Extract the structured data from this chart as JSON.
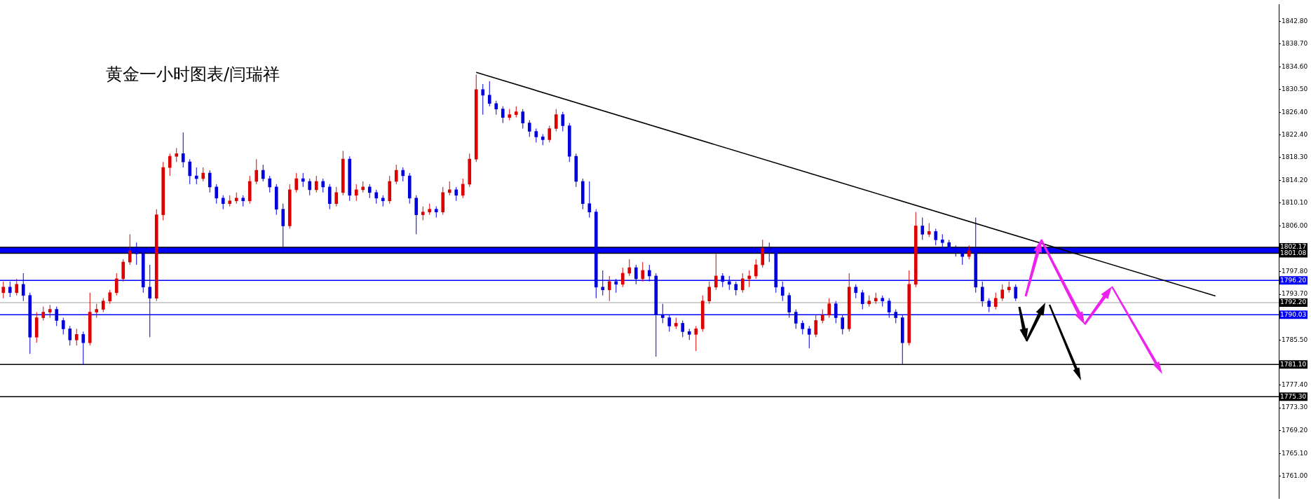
{
  "chart_data": {
    "type": "candlestick",
    "title": "黄金一小时图表/闫瑞祥",
    "categories": [
      null,
      null,
      null,
      null,
      null,
      null,
      null,
      null,
      null,
      null,
      null,
      null,
      null,
      null,
      null,
      null,
      null,
      null,
      null,
      null,
      null,
      null,
      null,
      null,
      null,
      null,
      null,
      null,
      null,
      null,
      null,
      null,
      null,
      null,
      null,
      null,
      null,
      null,
      null,
      null,
      null,
      null,
      null,
      null,
      null,
      null,
      null,
      null,
      null,
      null,
      null,
      null,
      null,
      null,
      null,
      null,
      null,
      null,
      null,
      null,
      null,
      null,
      null,
      null,
      null,
      null,
      null,
      null,
      null,
      null,
      null,
      null,
      null,
      null,
      null,
      null,
      null,
      null,
      null,
      null,
      null,
      null,
      null,
      null,
      null,
      null,
      null,
      null,
      null,
      null,
      null,
      null,
      null,
      null,
      null,
      null,
      null,
      null,
      null,
      null,
      null,
      null,
      null,
      null,
      null,
      null,
      null,
      null,
      null,
      null,
      null,
      null,
      null,
      null,
      null,
      null,
      null,
      null,
      null,
      null,
      null,
      null,
      null,
      null,
      null,
      null,
      null,
      null,
      null,
      null,
      null,
      null,
      null,
      null,
      null,
      null,
      null,
      null,
      null,
      null,
      null,
      null,
      null,
      null,
      null,
      null,
      null,
      null,
      null,
      null,
      null,
      null,
      null,
      null,
      null,
      null,
      null,
      null,
      null,
      null,
      null,
      null,
      null,
      null,
      null,
      null,
      null,
      null,
      null,
      null,
      null,
      null,
      null,
      null,
      null,
      null,
      null,
      null,
      null,
      null,
      null,
      null,
      null,
      null,
      null,
      null,
      null,
      null,
      null,
      null,
      null,
      null
    ],
    "ohlc": [
      [
        1794.0,
        1796.0,
        1793.0,
        1795.0
      ],
      [
        1795.0,
        1796.0,
        1793.2,
        1794.0
      ],
      [
        1794.0,
        1796.5,
        1793.5,
        1795.5
      ],
      [
        1795.5,
        1797.5,
        1792.5,
        1793.5
      ],
      [
        1793.5,
        1794.0,
        1783.0,
        1786.0
      ],
      [
        1786.0,
        1790.5,
        1785.0,
        1789.5
      ],
      [
        1789.5,
        1791.5,
        1789.0,
        1790.5
      ],
      [
        1790.5,
        1791.8,
        1789.5,
        1791.0
      ],
      [
        1791.0,
        1791.5,
        1788.0,
        1789.0
      ],
      [
        1789.0,
        1789.5,
        1786.5,
        1787.5
      ],
      [
        1787.5,
        1788.0,
        1784.5,
        1785.5
      ],
      [
        1785.5,
        1787.5,
        1784.5,
        1786.5
      ],
      [
        1786.5,
        1787.0,
        1781.0,
        1785.0
      ],
      [
        1785.0,
        1794.0,
        1784.5,
        1790.5
      ],
      [
        1790.5,
        1792.0,
        1789.5,
        1791.0
      ],
      [
        1791.0,
        1793.0,
        1790.5,
        1792.5
      ],
      [
        1792.5,
        1794.5,
        1792.0,
        1794.0
      ],
      [
        1794.0,
        1797.5,
        1793.5,
        1796.5
      ],
      [
        1796.5,
        1800.0,
        1796.0,
        1799.5
      ],
      [
        1799.5,
        1804.5,
        1799.0,
        1801.5
      ],
      [
        1801.5,
        1803.0,
        1799.0,
        1801.0
      ],
      [
        1801.0,
        1801.5,
        1794.0,
        1795.0
      ],
      [
        1795.0,
        1799.0,
        1786.0,
        1793.0
      ],
      [
        1793.0,
        1809.0,
        1792.5,
        1808.0
      ],
      [
        1808.0,
        1817.5,
        1807.0,
        1816.5
      ],
      [
        1816.5,
        1819.0,
        1815.0,
        1818.5
      ],
      [
        1818.5,
        1820.0,
        1817.5,
        1819.0
      ],
      [
        1819.0,
        1822.8,
        1816.5,
        1817.5
      ],
      [
        1817.5,
        1818.0,
        1813.5,
        1815.0
      ],
      [
        1815.0,
        1816.5,
        1813.5,
        1814.5
      ],
      [
        1814.5,
        1816.5,
        1814.0,
        1815.5
      ],
      [
        1815.5,
        1816.0,
        1812.0,
        1813.0
      ],
      [
        1813.0,
        1813.5,
        1810.0,
        1811.0
      ],
      [
        1811.0,
        1811.5,
        1809.0,
        1810.0
      ],
      [
        1810.0,
        1811.5,
        1809.5,
        1810.5
      ],
      [
        1810.5,
        1812.0,
        1810.0,
        1811.0
      ],
      [
        1811.0,
        1811.5,
        1809.5,
        1810.5
      ],
      [
        1810.5,
        1815.0,
        1810.0,
        1814.0
      ],
      [
        1814.0,
        1818.0,
        1813.5,
        1816.0
      ],
      [
        1816.0,
        1817.0,
        1814.0,
        1814.5
      ],
      [
        1814.5,
        1815.0,
        1812.0,
        1813.0
      ],
      [
        1813.0,
        1813.5,
        1808.0,
        1809.0
      ],
      [
        1809.0,
        1810.0,
        1801.5,
        1806.0
      ],
      [
        1806.0,
        1813.5,
        1805.5,
        1812.5
      ],
      [
        1812.5,
        1815.5,
        1812.0,
        1814.5
      ],
      [
        1814.5,
        1815.5,
        1813.0,
        1814.0
      ],
      [
        1814.0,
        1814.5,
        1811.5,
        1812.5
      ],
      [
        1812.5,
        1815.0,
        1812.0,
        1814.0
      ],
      [
        1814.0,
        1814.5,
        1812.0,
        1813.0
      ],
      [
        1813.0,
        1813.5,
        1809.0,
        1810.0
      ],
      [
        1810.0,
        1813.0,
        1809.5,
        1812.0
      ],
      [
        1812.0,
        1819.5,
        1811.5,
        1818.0
      ],
      [
        1818.0,
        1818.5,
        1810.5,
        1811.5
      ],
      [
        1811.5,
        1813.5,
        1810.5,
        1812.5
      ],
      [
        1812.5,
        1814.0,
        1812.0,
        1813.0
      ],
      [
        1813.0,
        1813.5,
        1811.0,
        1812.0
      ],
      [
        1812.0,
        1812.5,
        1810.0,
        1811.0
      ],
      [
        1811.0,
        1811.5,
        1809.5,
        1810.5
      ],
      [
        1810.5,
        1815.0,
        1810.0,
        1814.0
      ],
      [
        1814.0,
        1817.0,
        1813.5,
        1816.0
      ],
      [
        1816.0,
        1816.5,
        1814.0,
        1815.0
      ],
      [
        1815.0,
        1815.5,
        1810.0,
        1811.0
      ],
      [
        1811.0,
        1811.5,
        1804.5,
        1808.0
      ],
      [
        1808.0,
        1809.5,
        1807.0,
        1808.5
      ],
      [
        1808.5,
        1810.0,
        1808.0,
        1809.0
      ],
      [
        1809.0,
        1809.5,
        1807.5,
        1808.5
      ],
      [
        1808.5,
        1813.0,
        1808.0,
        1812.0
      ],
      [
        1812.0,
        1814.0,
        1811.5,
        1812.5
      ],
      [
        1812.5,
        1813.0,
        1810.5,
        1811.5
      ],
      [
        1811.5,
        1814.5,
        1811.0,
        1813.5
      ],
      [
        1813.5,
        1819.0,
        1813.0,
        1818.0
      ],
      [
        1818.0,
        1833.2,
        1817.5,
        1830.5
      ],
      [
        1830.5,
        1831.5,
        1826.0,
        1829.5
      ],
      [
        1829.5,
        1832.0,
        1827.5,
        1828.0
      ],
      [
        1828.0,
        1828.5,
        1826.0,
        1827.0
      ],
      [
        1827.0,
        1827.5,
        1824.5,
        1825.5
      ],
      [
        1825.5,
        1827.0,
        1825.0,
        1826.0
      ],
      [
        1826.0,
        1827.5,
        1825.5,
        1826.5
      ],
      [
        1826.5,
        1827.0,
        1823.5,
        1824.5
      ],
      [
        1824.5,
        1825.0,
        1822.0,
        1823.0
      ],
      [
        1823.0,
        1823.5,
        1821.0,
        1822.0
      ],
      [
        1822.0,
        1822.5,
        1820.5,
        1821.5
      ],
      [
        1821.5,
        1824.0,
        1821.0,
        1823.5
      ],
      [
        1823.5,
        1827.0,
        1823.0,
        1826.0
      ],
      [
        1826.0,
        1826.5,
        1823.0,
        1824.0
      ],
      [
        1824.0,
        1824.5,
        1817.5,
        1818.5
      ],
      [
        1818.5,
        1819.0,
        1813.0,
        1814.0
      ],
      [
        1814.0,
        1814.5,
        1809.0,
        1810.0
      ],
      [
        1810.0,
        1814.0,
        1807.5,
        1808.5
      ],
      [
        1808.5,
        1809.0,
        1793.0,
        1795.0
      ],
      [
        1795.0,
        1798.0,
        1793.5,
        1794.5
      ],
      [
        1794.5,
        1797.0,
        1792.5,
        1796.0
      ],
      [
        1796.0,
        1796.5,
        1794.0,
        1795.5
      ],
      [
        1795.5,
        1798.5,
        1795.0,
        1797.5
      ],
      [
        1797.5,
        1800.0,
        1797.0,
        1798.5
      ],
      [
        1798.5,
        1799.0,
        1795.5,
        1796.5
      ],
      [
        1796.5,
        1799.5,
        1796.0,
        1798.0
      ],
      [
        1798.0,
        1799.0,
        1796.0,
        1797.0
      ],
      [
        1797.0,
        1797.5,
        1782.5,
        1790.0
      ],
      [
        1790.0,
        1792.0,
        1788.5,
        1789.5
      ],
      [
        1789.5,
        1790.0,
        1787.0,
        1788.0
      ],
      [
        1788.0,
        1789.5,
        1787.5,
        1788.5
      ],
      [
        1788.5,
        1789.0,
        1786.0,
        1787.0
      ],
      [
        1787.0,
        1787.5,
        1785.5,
        1786.5
      ],
      [
        1786.5,
        1788.0,
        1783.5,
        1787.5
      ],
      [
        1787.5,
        1793.5,
        1787.0,
        1792.5
      ],
      [
        1792.5,
        1796.0,
        1792.0,
        1795.0
      ],
      [
        1795.0,
        1801.0,
        1794.5,
        1797.0
      ],
      [
        1797.0,
        1797.5,
        1795.0,
        1796.0
      ],
      [
        1796.0,
        1797.0,
        1794.5,
        1795.5
      ],
      [
        1795.5,
        1796.0,
        1793.5,
        1794.5
      ],
      [
        1794.5,
        1797.5,
        1794.0,
        1796.5
      ],
      [
        1796.5,
        1798.0,
        1795.0,
        1797.0
      ],
      [
        1797.0,
        1800.0,
        1796.5,
        1799.0
      ],
      [
        1799.0,
        1803.5,
        1798.5,
        1802.0
      ],
      [
        1802.0,
        1803.0,
        1799.5,
        1801.5
      ],
      [
        1801.5,
        1802.0,
        1794.0,
        1795.0
      ],
      [
        1795.0,
        1796.0,
        1792.5,
        1793.5
      ],
      [
        1793.5,
        1794.0,
        1789.5,
        1790.5
      ],
      [
        1790.5,
        1791.0,
        1787.5,
        1788.5
      ],
      [
        1788.5,
        1789.0,
        1786.5,
        1787.5
      ],
      [
        1787.5,
        1788.0,
        1784.0,
        1786.5
      ],
      [
        1786.5,
        1790.0,
        1786.0,
        1789.0
      ],
      [
        1789.0,
        1791.0,
        1788.5,
        1790.0
      ],
      [
        1790.0,
        1793.0,
        1789.5,
        1792.0
      ],
      [
        1792.0,
        1792.5,
        1788.5,
        1789.5
      ],
      [
        1789.5,
        1790.0,
        1786.5,
        1787.5
      ],
      [
        1787.5,
        1797.5,
        1787.0,
        1795.0
      ],
      [
        1795.0,
        1795.5,
        1793.0,
        1794.0
      ],
      [
        1794.0,
        1794.5,
        1791.0,
        1792.0
      ],
      [
        1792.0,
        1793.5,
        1791.5,
        1792.5
      ],
      [
        1792.5,
        1794.0,
        1792.0,
        1793.0
      ],
      [
        1793.0,
        1793.5,
        1791.5,
        1792.5
      ],
      [
        1792.5,
        1793.0,
        1789.5,
        1790.5
      ],
      [
        1790.5,
        1791.0,
        1788.5,
        1789.5
      ],
      [
        1789.5,
        1790.0,
        1781.0,
        1785.0
      ],
      [
        1785.0,
        1798.0,
        1784.5,
        1795.5
      ],
      [
        1795.5,
        1808.5,
        1795.0,
        1806.0
      ],
      [
        1806.0,
        1807.5,
        1803.5,
        1804.5
      ],
      [
        1804.5,
        1806.5,
        1804.0,
        1805.0
      ],
      [
        1805.0,
        1805.5,
        1802.5,
        1803.5
      ],
      [
        1803.5,
        1804.5,
        1802.0,
        1803.0
      ],
      [
        1803.0,
        1803.5,
        1801.0,
        1802.0
      ],
      [
        1802.0,
        1802.5,
        1800.5,
        1801.5
      ],
      [
        1801.5,
        1802.0,
        1799.0,
        1800.5
      ],
      [
        1800.5,
        1802.5,
        1800.0,
        1801.5
      ],
      [
        1801.5,
        1807.5,
        1794.0,
        1795.0
      ],
      [
        1795.0,
        1796.0,
        1791.5,
        1792.5
      ],
      [
        1792.5,
        1793.0,
        1790.5,
        1791.5
      ],
      [
        1791.5,
        1794.0,
        1791.0,
        1793.0
      ],
      [
        1793.0,
        1795.5,
        1792.5,
        1794.5
      ],
      [
        1794.5,
        1796.0,
        1794.0,
        1795.0
      ],
      [
        1795.0,
        1795.5,
        1792.5,
        1793.0
      ],
      null,
      null,
      null,
      null,
      null,
      null,
      null,
      null,
      null,
      null,
      null,
      null,
      null,
      null,
      null,
      null,
      null,
      null,
      null,
      null,
      null,
      null,
      null,
      null,
      null,
      null,
      null,
      null,
      null,
      null,
      null,
      null,
      null,
      null,
      null,
      null,
      null,
      null,
      null
    ],
    "colors": [
      "#dd0000",
      "#0000dd",
      "#dd0000",
      "#0000dd",
      "#0000dd",
      "#dd0000",
      "#dd0000",
      "#dd0000",
      "#0000dd",
      "#0000dd",
      "#0000dd",
      "#dd0000",
      "#0000dd",
      "#dd0000",
      "#dd0000",
      "#dd0000",
      "#dd0000",
      "#dd0000",
      "#dd0000",
      "#dd0000",
      "#0000dd",
      "#0000dd",
      "#0000dd",
      "#dd0000",
      "#dd0000",
      "#dd0000",
      "#dd0000",
      "#0000dd",
      "#0000dd",
      "#0000dd",
      "#dd0000",
      "#0000dd",
      "#0000dd",
      "#0000dd",
      "#dd0000",
      "#dd0000",
      "#0000dd",
      "#dd0000",
      "#dd0000",
      "#0000dd",
      "#0000dd",
      "#0000dd",
      "#0000dd",
      "#dd0000",
      "#dd0000",
      "#0000dd",
      "#0000dd",
      "#dd0000",
      "#0000dd",
      "#0000dd",
      "#dd0000",
      "#dd0000",
      "#0000dd",
      "#dd0000",
      "#dd0000",
      "#0000dd",
      "#0000dd",
      "#0000dd",
      "#dd0000",
      "#dd0000",
      "#0000dd",
      "#0000dd",
      "#0000dd",
      "#dd0000",
      "#dd0000",
      "#0000dd",
      "#dd0000",
      "#dd0000",
      "#0000dd",
      "#dd0000",
      "#dd0000",
      "#dd0000",
      "#0000dd",
      "#0000dd",
      "#0000dd",
      "#0000dd",
      "#dd0000",
      "#dd0000",
      "#0000dd",
      "#0000dd",
      "#0000dd",
      "#0000dd",
      "#dd0000",
      "#dd0000",
      "#0000dd",
      "#0000dd",
      "#0000dd",
      "#0000dd",
      "#0000dd",
      "#0000dd",
      "#0000dd",
      "#dd0000",
      "#0000dd",
      "#dd0000",
      "#dd0000",
      "#0000dd",
      "#dd0000",
      "#0000dd",
      "#0000dd",
      "#0000dd",
      "#0000dd",
      "#dd0000",
      "#0000dd",
      "#0000dd",
      "#dd0000",
      "#dd0000",
      "#dd0000",
      "#dd0000",
      "#0000dd",
      "#0000dd",
      "#0000dd",
      "#dd0000",
      "#dd0000",
      "#dd0000",
      "#dd0000",
      "#0000dd",
      "#0000dd",
      "#0000dd",
      "#0000dd",
      "#0000dd",
      "#0000dd",
      "#0000dd",
      "#dd0000",
      "#dd0000",
      "#dd0000",
      "#0000dd",
      "#0000dd",
      "#dd0000",
      "#0000dd",
      "#0000dd",
      "#dd0000",
      "#dd0000",
      "#0000dd",
      "#0000dd",
      "#0000dd",
      "#0000dd",
      "#dd0000",
      "#dd0000",
      "#0000dd",
      "#dd0000",
      "#0000dd",
      "#0000dd",
      "#0000dd",
      "#0000dd",
      "#0000dd",
      "#dd0000",
      "#0000dd",
      "#0000dd",
      "#0000dd",
      "#dd0000",
      "#dd0000",
      "#dd0000",
      "#0000dd",
      null,
      null,
      null,
      null,
      null,
      null,
      null,
      null,
      null,
      null,
      null,
      null,
      null,
      null,
      null,
      null,
      null,
      null,
      null,
      null,
      null,
      null,
      null,
      null,
      null,
      null,
      null,
      null,
      null,
      null,
      null,
      null,
      null,
      null,
      null,
      null,
      null,
      null,
      null
    ],
    "series": [
      {
        "type": "line",
        "values": [
          null,
          null,
          null,
          null,
          null,
          null,
          null,
          null,
          null,
          null,
          null,
          null,
          null,
          null,
          null,
          null,
          null,
          null,
          null,
          null,
          null,
          null,
          null,
          null,
          null,
          null,
          null,
          null,
          null,
          null,
          null,
          null,
          null,
          null,
          null,
          null,
          null,
          null,
          null,
          null,
          null,
          null,
          null,
          null,
          null,
          null,
          null,
          null,
          null,
          null,
          null,
          null,
          null,
          null,
          null,
          null,
          null,
          null,
          null,
          null,
          null,
          null,
          null,
          null,
          null,
          null,
          null,
          null,
          null,
          null,
          null,
          1833.6,
          null,
          null,
          null,
          null,
          null,
          null,
          null,
          null,
          null,
          null,
          null,
          null,
          null,
          null,
          null,
          null,
          null,
          null,
          null,
          null,
          null,
          null,
          null,
          null,
          null,
          null,
          null,
          null,
          null,
          null,
          null,
          null,
          null,
          null,
          null,
          null,
          null,
          null,
          null,
          null,
          null,
          null,
          null,
          null,
          null,
          null,
          null,
          null,
          null,
          null,
          null,
          null,
          null,
          null,
          null,
          null,
          null,
          null,
          null,
          null,
          null,
          null,
          null,
          null,
          null,
          null,
          null,
          null,
          null,
          null,
          null,
          null,
          null,
          null,
          null,
          null,
          null,
          null,
          null,
          null,
          null,
          null,
          null,
          null,
          null,
          null,
          null,
          null,
          null,
          null,
          null,
          null,
          null,
          null,
          null,
          null,
          null,
          null,
          null,
          null,
          null,
          null,
          null,
          null,
          null,
          null,
          null,
          null,
          null,
          null,
          1793.4,
          null,
          null,
          null,
          null,
          null,
          null,
          null,
          null,
          null
        ],
        "color": "#000000"
      }
    ],
    "ylim": [
      1757,
      1845.8
    ],
    "yticks": [
      {
        "value": 1842.8,
        "label": "1842.80"
      },
      {
        "value": 1838.7,
        "label": "1838.70"
      },
      {
        "value": 1834.6,
        "label": "1834.60"
      },
      {
        "value": 1830.5,
        "label": "1830.50"
      },
      {
        "value": 1826.4,
        "label": "1826.40"
      },
      {
        "value": 1822.4,
        "label": "1822.40"
      },
      {
        "value": 1818.3,
        "label": "1818.30"
      },
      {
        "value": 1814.2,
        "label": "1814.20"
      },
      {
        "value": 1810.1,
        "label": "1810.10"
      },
      {
        "value": 1806,
        "label": "1806.00"
      },
      {
        "value": 1797.8,
        "label": "1797.80"
      },
      {
        "value": 1793.7,
        "label": "1793.70"
      },
      {
        "value": 1785.5,
        "label": "1785.50"
      },
      {
        "value": 1777.4,
        "label": "1777.40"
      },
      {
        "value": 1773.3,
        "label": "1773.30"
      },
      {
        "value": 1769.2,
        "label": "1769.20"
      },
      {
        "value": 1765.1,
        "label": "1765.10"
      },
      {
        "value": 1761,
        "label": "1761.00"
      }
    ],
    "tick_labels": "y",
    "grid": false,
    "legend": false,
    "bands": [
      {
        "axis": "y",
        "from": 1801.08,
        "to": 1802.17,
        "color": "#0000ff"
      }
    ],
    "ref_lines": [
      {
        "axis": "y",
        "value": 1802.17,
        "label": "1802.17",
        "color": "#000000"
      },
      {
        "axis": "y",
        "value": 1801.08,
        "label": "1801.08",
        "color": "#000000"
      },
      {
        "axis": "y",
        "value": 1796.2,
        "label": "1796.20",
        "color": "#0000ff"
      },
      {
        "axis": "y",
        "value": 1792.2,
        "label": "1792.20",
        "color": "#c0c0c0"
      },
      {
        "axis": "y",
        "value": 1790.03,
        "label": "1790.03",
        "color": "#0000ff"
      },
      {
        "axis": "y",
        "value": 1781.1,
        "label": "1781.10",
        "color": "#000000"
      },
      {
        "axis": "y",
        "value": 1775.3,
        "label": "1775.30",
        "color": "#000000"
      }
    ]
  }
}
